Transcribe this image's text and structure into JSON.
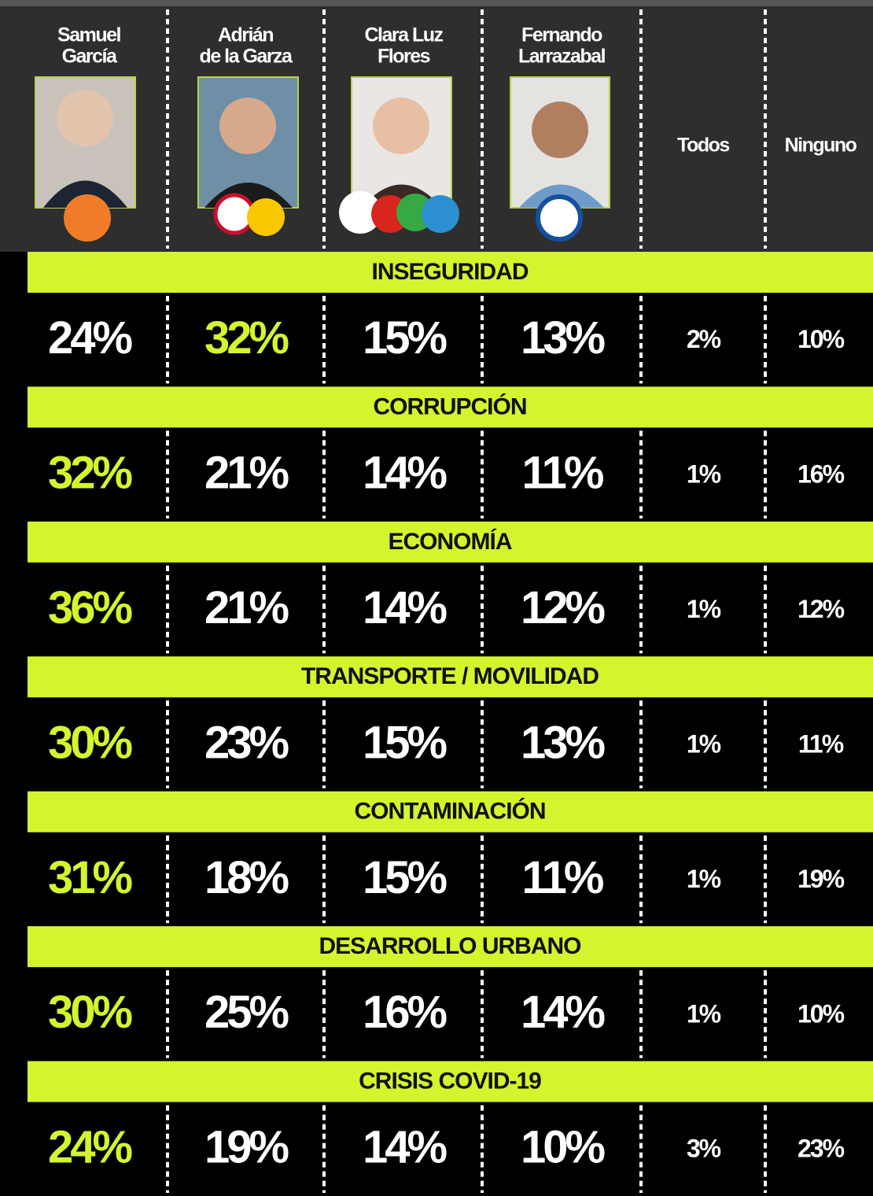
{
  "header": {
    "columns": [
      {
        "name": [
          "Samuel",
          "García"
        ]
      },
      {
        "name": [
          "Adrián",
          "de la Garza"
        ]
      },
      {
        "name": [
          "Clara Luz",
          "Flores"
        ]
      },
      {
        "name": [
          "Fernando",
          "Larrazabal"
        ]
      },
      {
        "name": [
          "Todos"
        ]
      },
      {
        "name": [
          "Ninguno"
        ]
      }
    ]
  },
  "sections": [
    {
      "title": "INSEGURIDAD",
      "values": [
        "24%",
        "32%",
        "15%",
        "13%",
        "2%",
        "10%"
      ]
    },
    {
      "title": "CORRUPCIÓN",
      "values": [
        "32%",
        "21%",
        "14%",
        "11%",
        "1%",
        "16%"
      ]
    },
    {
      "title": "ECONOMÍA",
      "values": [
        "36%",
        "21%",
        "14%",
        "12%",
        "1%",
        "12%"
      ]
    },
    {
      "title": "TRANSPORTE / MOVILIDAD",
      "values": [
        "30%",
        "23%",
        "15%",
        "13%",
        "1%",
        "11%"
      ]
    },
    {
      "title": "CONTAMINACIÓN",
      "values": [
        "31%",
        "18%",
        "15%",
        "11%",
        "1%",
        "19%"
      ]
    },
    {
      "title": "DESARROLLO URBANO",
      "values": [
        "30%",
        "25%",
        "16%",
        "14%",
        "1%",
        "10%"
      ]
    },
    {
      "title": "CRISIS COVID-19",
      "values": [
        "24%",
        "19%",
        "14%",
        "10%",
        "3%",
        "23%"
      ]
    }
  ]
}
